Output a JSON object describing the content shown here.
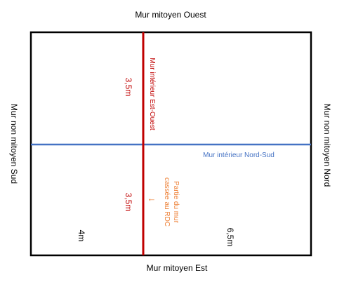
{
  "walls": {
    "west": "Mur mitoyen Ouest",
    "east": "Mur mitoyen Est",
    "south": "Mur non mitoyen Sud",
    "north": "Mur non mitoyen Nord"
  },
  "interior": {
    "east_west": "Mur intérieur Est-Ouest",
    "north_south": "Mur intérieur Nord-Sud"
  },
  "dimensions": {
    "top_half": "3,5m",
    "bottom_half": "3,5m",
    "left_span": "4m",
    "right_span": "6,5m"
  },
  "annotation": {
    "line1": "Partie du mur",
    "line2": "cassée au RDC",
    "arrow": "←"
  },
  "colors": {
    "outline": "#000000",
    "east_west_wall": "#c00000",
    "north_south_wall": "#4472c4",
    "annotation": "#ed7d31"
  }
}
